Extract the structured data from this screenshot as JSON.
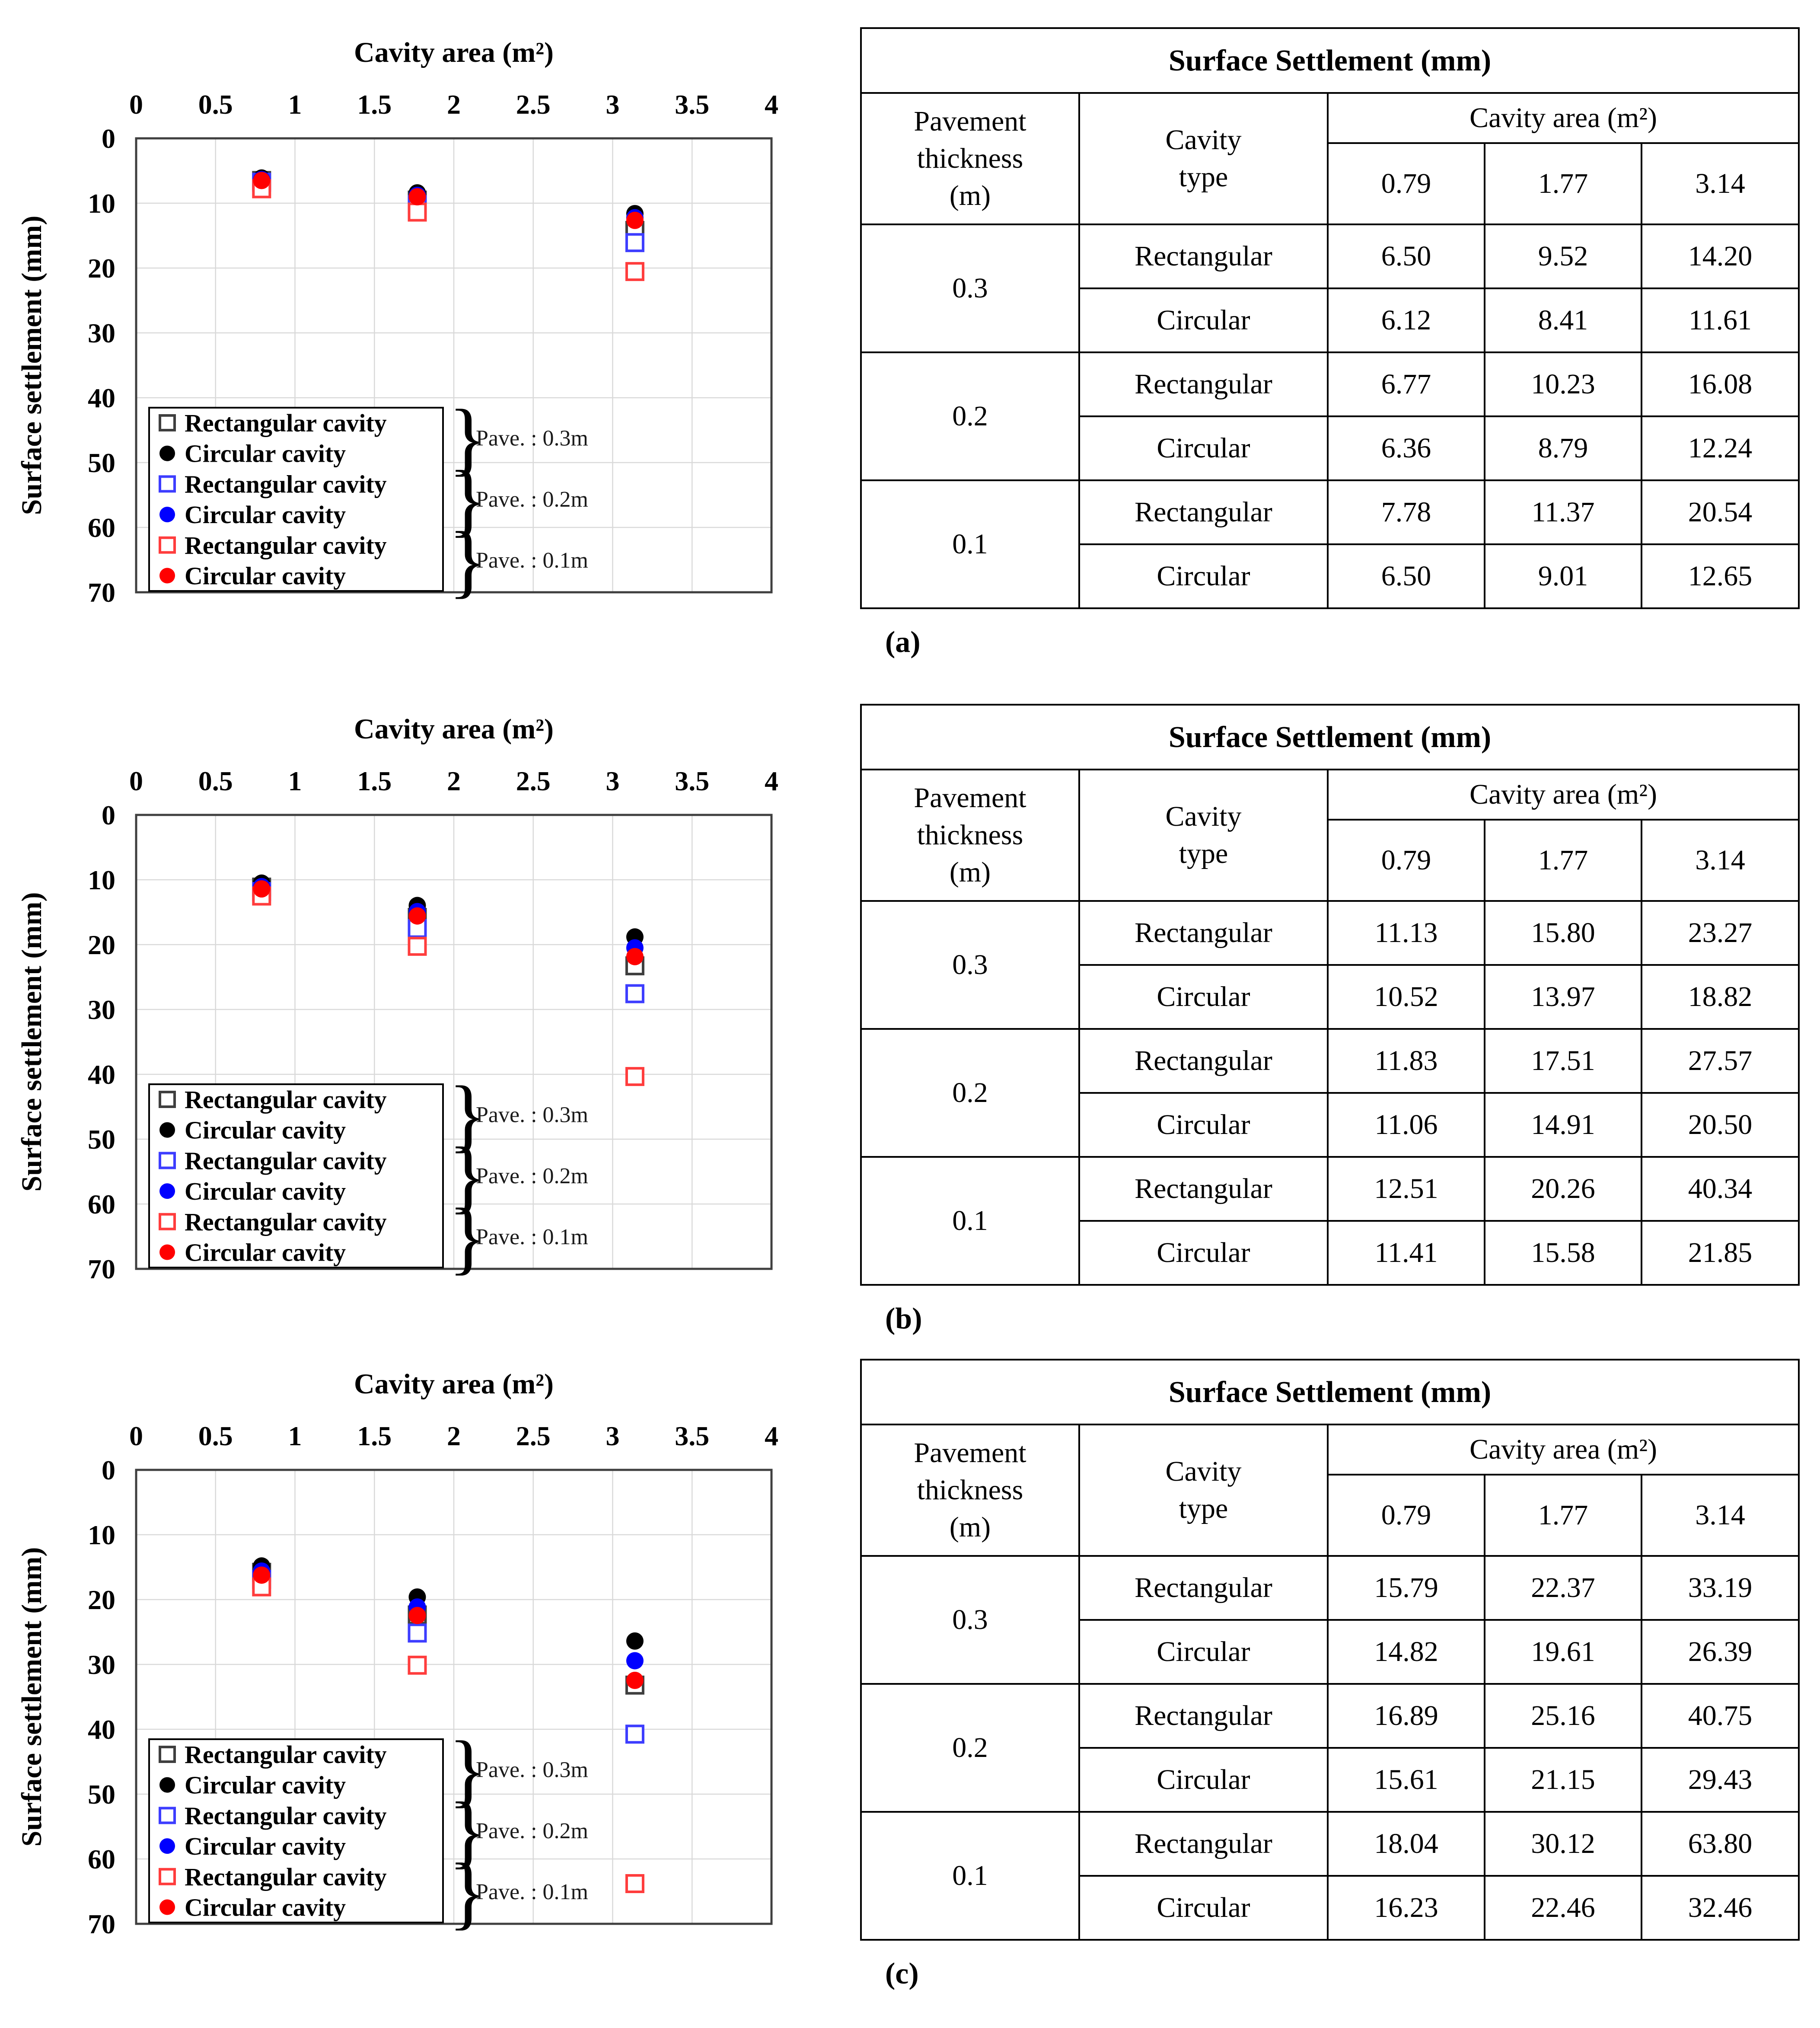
{
  "colors": {
    "background": "#ffffff",
    "grid": "#d9d9d9",
    "plot_border": "#3f3f3f",
    "table_border": "#000000",
    "black": "#000000",
    "blue": "#0000ff",
    "red": "#ff0000"
  },
  "shared_axes": {
    "x_title": "Cavity area (m²)",
    "x_ticks": [
      "0",
      "0.5",
      "1",
      "1.5",
      "2",
      "2.5",
      "3",
      "3.5",
      "4"
    ],
    "xlim": [
      0,
      4
    ],
    "y_label": "Surface settlement (mm)",
    "y_ticks": [
      "0",
      "10",
      "20",
      "30",
      "40",
      "50",
      "60",
      "70"
    ],
    "ylim": [
      0,
      70
    ],
    "grid": "on",
    "x_axis_position": "top",
    "y_axis_inverted": true
  },
  "legend": {
    "position": "lower-left-inside",
    "entries": [
      {
        "marker": "square-open",
        "color": "#3f3f3f",
        "label": "Rectangular cavity"
      },
      {
        "marker": "circle-filled",
        "color": "#000000",
        "label": "Circular cavity"
      },
      {
        "marker": "square-open",
        "color": "#3d3dff",
        "label": "Rectangular cavity"
      },
      {
        "marker": "circle-filled",
        "color": "#0000ff",
        "label": "Circular cavity"
      },
      {
        "marker": "square-open",
        "color": "#ff3d3d",
        "label": "Rectangular cavity"
      },
      {
        "marker": "circle-filled",
        "color": "#ff0000",
        "label": "Circular cavity"
      }
    ],
    "groups": [
      {
        "label": "Pave. : 0.3m"
      },
      {
        "label": "Pave. : 0.2m"
      },
      {
        "label": "Pave. : 0.1m"
      }
    ]
  },
  "subfigure_labels": [
    "(a)",
    "(b)",
    "(c)"
  ],
  "chart_data": [
    {
      "type": "scatter",
      "id": "a",
      "title": "Cavity area (m²)",
      "xlabel": "Cavity area (m²)",
      "ylabel": "Surface settlement (mm)",
      "x": [
        0.79,
        1.77,
        3.14
      ],
      "series": [
        {
          "name": "Rectangular cavity (Pave. 0.3m)",
          "marker": "square-open",
          "color": "#3f3f3f",
          "values": [
            6.5,
            9.52,
            14.2
          ]
        },
        {
          "name": "Circular cavity (Pave. 0.3m)",
          "marker": "circle-filled",
          "color": "#000000",
          "values": [
            6.12,
            8.41,
            11.61
          ]
        },
        {
          "name": "Rectangular cavity (Pave. 0.2m)",
          "marker": "square-open",
          "color": "#3d3dff",
          "values": [
            6.77,
            10.23,
            16.08
          ]
        },
        {
          "name": "Circular cavity (Pave. 0.2m)",
          "marker": "circle-filled",
          "color": "#0000ff",
          "values": [
            6.36,
            8.79,
            12.24
          ]
        },
        {
          "name": "Rectangular cavity (Pave. 0.1m)",
          "marker": "square-open",
          "color": "#ff3d3d",
          "values": [
            7.78,
            11.37,
            20.54
          ]
        },
        {
          "name": "Circular cavity (Pave. 0.1m)",
          "marker": "circle-filled",
          "color": "#ff0000",
          "values": [
            6.5,
            9.01,
            12.65
          ]
        }
      ]
    },
    {
      "type": "scatter",
      "id": "b",
      "title": "Cavity area (m²)",
      "xlabel": "Cavity area (m²)",
      "ylabel": "Surface settlement (mm)",
      "x": [
        0.79,
        1.77,
        3.14
      ],
      "series": [
        {
          "name": "Rectangular cavity (Pave. 0.3m)",
          "marker": "square-open",
          "color": "#3f3f3f",
          "values": [
            11.13,
            15.8,
            23.27
          ]
        },
        {
          "name": "Circular cavity (Pave. 0.3m)",
          "marker": "circle-filled",
          "color": "#000000",
          "values": [
            10.52,
            13.97,
            18.82
          ]
        },
        {
          "name": "Rectangular cavity (Pave. 0.2m)",
          "marker": "square-open",
          "color": "#3d3dff",
          "values": [
            11.83,
            17.51,
            27.57
          ]
        },
        {
          "name": "Circular cavity (Pave. 0.2m)",
          "marker": "circle-filled",
          "color": "#0000ff",
          "values": [
            11.06,
            14.91,
            20.5
          ]
        },
        {
          "name": "Rectangular cavity (Pave. 0.1m)",
          "marker": "square-open",
          "color": "#ff3d3d",
          "values": [
            12.51,
            20.26,
            40.34
          ]
        },
        {
          "name": "Circular cavity (Pave. 0.1m)",
          "marker": "circle-filled",
          "color": "#ff0000",
          "values": [
            11.41,
            15.58,
            21.85
          ]
        }
      ]
    },
    {
      "type": "scatter",
      "id": "c",
      "title": "Cavity area (m²)",
      "xlabel": "Cavity area (m²)",
      "ylabel": "Surface settlement (mm)",
      "x": [
        0.79,
        1.77,
        3.14
      ],
      "series": [
        {
          "name": "Rectangular cavity (Pave. 0.3m)",
          "marker": "square-open",
          "color": "#3f3f3f",
          "values": [
            15.79,
            22.37,
            33.19
          ]
        },
        {
          "name": "Circular cavity (Pave. 0.3m)",
          "marker": "circle-filled",
          "color": "#000000",
          "values": [
            14.82,
            19.61,
            26.39
          ]
        },
        {
          "name": "Rectangular cavity (Pave. 0.2m)",
          "marker": "square-open",
          "color": "#3d3dff",
          "values": [
            16.89,
            25.16,
            40.75
          ]
        },
        {
          "name": "Circular cavity (Pave. 0.2m)",
          "marker": "circle-filled",
          "color": "#0000ff",
          "values": [
            15.61,
            21.15,
            29.43
          ]
        },
        {
          "name": "Rectangular cavity (Pave. 0.1m)",
          "marker": "square-open",
          "color": "#ff3d3d",
          "values": [
            18.04,
            30.12,
            63.8
          ]
        },
        {
          "name": "Circular cavity (Pave. 0.1m)",
          "marker": "circle-filled",
          "color": "#ff0000",
          "values": [
            16.23,
            22.46,
            32.46
          ]
        }
      ]
    }
  ],
  "tables": [
    {
      "id": "a",
      "title": "Surface Settlement (mm)",
      "headers": {
        "pavement": "Pavement\nthickness\n(m)",
        "cavity_type": "Cavity\ntype",
        "cavity_area": "Cavity area (m²)",
        "areas": [
          "0.79",
          "1.77",
          "3.14"
        ]
      },
      "groups": [
        {
          "thickness": "0.3",
          "rows": [
            {
              "type": "Rectangular",
              "values": [
                "6.50",
                "9.52",
                "14.20"
              ]
            },
            {
              "type": "Circular",
              "values": [
                "6.12",
                "8.41",
                "11.61"
              ]
            }
          ]
        },
        {
          "thickness": "0.2",
          "rows": [
            {
              "type": "Rectangular",
              "values": [
                "6.77",
                "10.23",
                "16.08"
              ]
            },
            {
              "type": "Circular",
              "values": [
                "6.36",
                "8.79",
                "12.24"
              ]
            }
          ]
        },
        {
          "thickness": "0.1",
          "rows": [
            {
              "type": "Rectangular",
              "values": [
                "7.78",
                "11.37",
                "20.54"
              ]
            },
            {
              "type": "Circular",
              "values": [
                "6.50",
                "9.01",
                "12.65"
              ]
            }
          ]
        }
      ]
    },
    {
      "id": "b",
      "title": "Surface Settlement (mm)",
      "headers": {
        "pavement": "Pavement\nthickness\n(m)",
        "cavity_type": "Cavity\ntype",
        "cavity_area": "Cavity area (m²)",
        "areas": [
          "0.79",
          "1.77",
          "3.14"
        ]
      },
      "groups": [
        {
          "thickness": "0.3",
          "rows": [
            {
              "type": "Rectangular",
              "values": [
                "11.13",
                "15.80",
                "23.27"
              ]
            },
            {
              "type": "Circular",
              "values": [
                "10.52",
                "13.97",
                "18.82"
              ]
            }
          ]
        },
        {
          "thickness": "0.2",
          "rows": [
            {
              "type": "Rectangular",
              "values": [
                "11.83",
                "17.51",
                "27.57"
              ]
            },
            {
              "type": "Circular",
              "values": [
                "11.06",
                "14.91",
                "20.50"
              ]
            }
          ]
        },
        {
          "thickness": "0.1",
          "rows": [
            {
              "type": "Rectangular",
              "values": [
                "12.51",
                "20.26",
                "40.34"
              ]
            },
            {
              "type": "Circular",
              "values": [
                "11.41",
                "15.58",
                "21.85"
              ]
            }
          ]
        }
      ]
    },
    {
      "id": "c",
      "title": "Surface Settlement (mm)",
      "headers": {
        "pavement": "Pavement\nthickness\n(m)",
        "cavity_type": "Cavity\ntype",
        "cavity_area": "Cavity area (m²)",
        "areas": [
          "0.79",
          "1.77",
          "3.14"
        ]
      },
      "groups": [
        {
          "thickness": "0.3",
          "rows": [
            {
              "type": "Rectangular",
              "values": [
                "15.79",
                "22.37",
                "33.19"
              ]
            },
            {
              "type": "Circular",
              "values": [
                "14.82",
                "19.61",
                "26.39"
              ]
            }
          ]
        },
        {
          "thickness": "0.2",
          "rows": [
            {
              "type": "Rectangular",
              "values": [
                "16.89",
                "25.16",
                "40.75"
              ]
            },
            {
              "type": "Circular",
              "values": [
                "15.61",
                "21.15",
                "29.43"
              ]
            }
          ]
        },
        {
          "thickness": "0.1",
          "rows": [
            {
              "type": "Rectangular",
              "values": [
                "18.04",
                "30.12",
                "63.80"
              ]
            },
            {
              "type": "Circular",
              "values": [
                "16.23",
                "22.46",
                "32.46"
              ]
            }
          ]
        }
      ]
    }
  ]
}
